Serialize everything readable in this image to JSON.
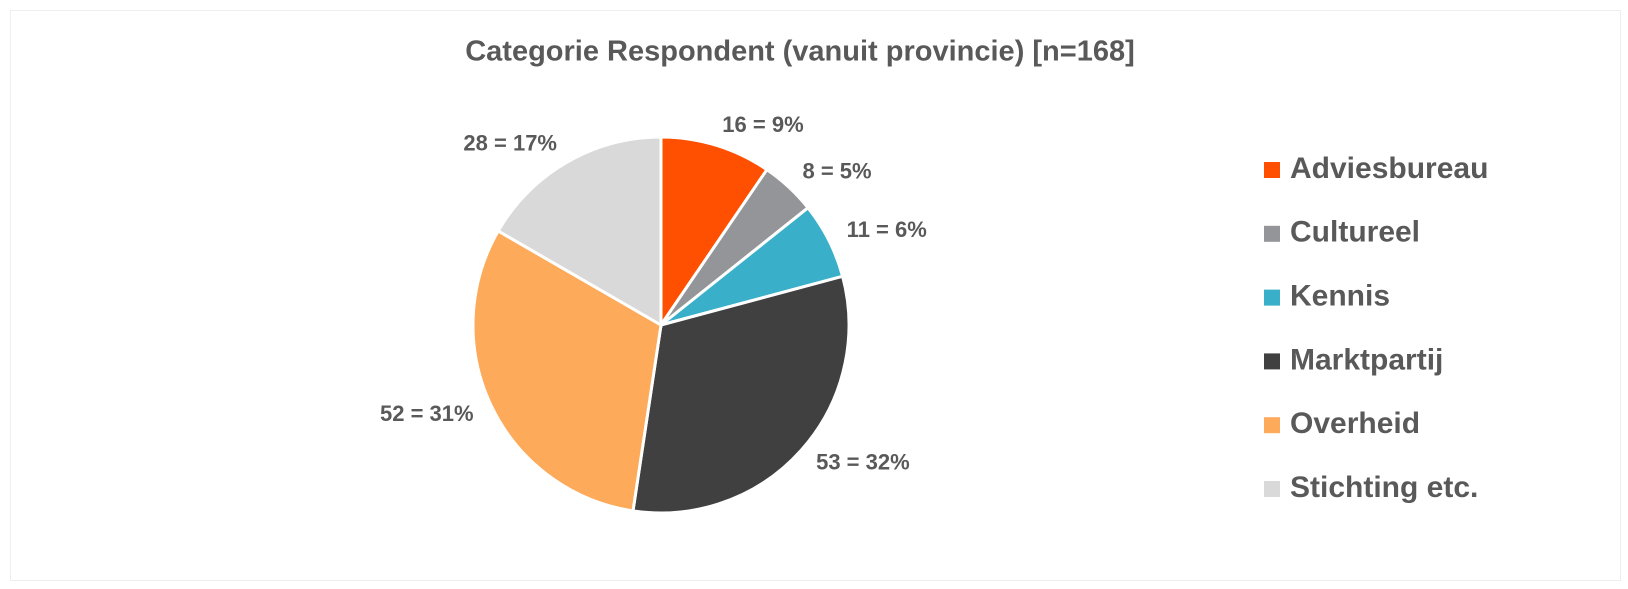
{
  "chart_data": {
    "type": "pie",
    "title": "Categorie Respondent (vanuit provincie) [n=168]",
    "categories": [
      "Adviesbureau",
      "Cultureel",
      "Kennis",
      "Marktpartij",
      "Overheid",
      "Stichting etc."
    ],
    "values": [
      16,
      8,
      11,
      53,
      52,
      28
    ],
    "value_labels": [
      "16 = 9%",
      "8 = 5%",
      "11 = 6%",
      "53 = 32%",
      "52 = 31%",
      "28 = 17%"
    ],
    "colors": [
      "#fe5000",
      "#939598",
      "#3aafc9",
      "#404040",
      "#fdaa5a",
      "#d9d9d9"
    ],
    "legend": "right"
  }
}
